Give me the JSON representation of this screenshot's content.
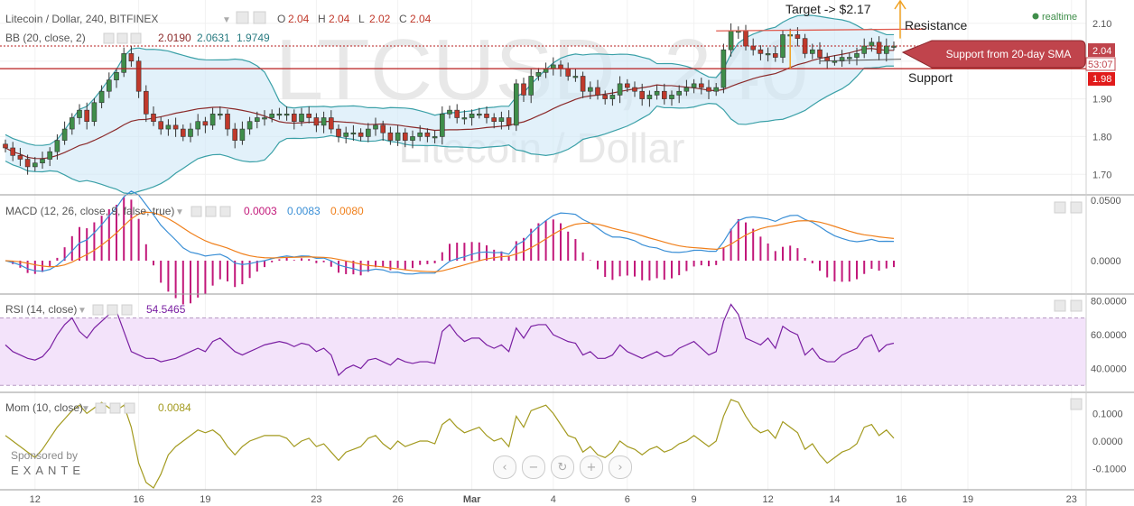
{
  "header": {
    "symbol_title": "Litecoin / Dollar, 240, BITFINEX",
    "ohlc": [
      {
        "k": "O",
        "v": "2.04"
      },
      {
        "k": "H",
        "v": "2.04"
      },
      {
        "k": "L",
        "v": "2.02"
      },
      {
        "k": "C",
        "v": "2.04"
      }
    ],
    "realtime": "realtime"
  },
  "watermark": {
    "big": "LTCUSD, 240",
    "sub": "Litecoin / Dollar"
  },
  "indicators": {
    "bb": {
      "label": "BB (20, close, 2)",
      "v1": "2.0190",
      "v2": "2.0631",
      "v3": "1.9749"
    },
    "macd": {
      "label": "MACD (12, 26, close, 9, false, true)",
      "v1": "0.0003",
      "v2": "0.0083",
      "v3": "0.0080"
    },
    "rsi": {
      "label": "RSI (14, close)",
      "v1": "54.5465"
    },
    "mom": {
      "label": "Mom (10, close)",
      "v1": "0.0084"
    }
  },
  "annotations": {
    "target": "Target -> $2.17",
    "resistance": "Resistance",
    "support": "Support",
    "callout": "Support from 20-day SMA"
  },
  "price_tags": {
    "last": "2.04",
    "timer": "53:07",
    "support": "1.98"
  },
  "sponsor": {
    "line1": "Sponsored by",
    "line2": "EXANTE"
  },
  "colors": {
    "up": "#3f8e4a",
    "down": "#c0392b",
    "bb_band": "#3aa0a7",
    "bb_basis": "#8b2a2a",
    "bb_fill": "#cfe8f6",
    "macd_line": "#3a8fd6",
    "signal_line": "#f07f1a",
    "hist": "#c2187a",
    "rsi": "#7a1fa2",
    "rsi_fill": "#f3e3fa",
    "mom": "#a39a1f",
    "level": "#b71c1c",
    "target_arrow": "#f0a020"
  },
  "chart_data": [
    {
      "type": "candlestick",
      "title": "Litecoin / Dollar, 240, BITFINEX",
      "y_ticks": [
        "1.70",
        "1.80",
        "1.90",
        "2.00",
        "2.10"
      ],
      "ylim": [
        1.66,
        2.15
      ],
      "x_ticks": [
        "12",
        "16",
        "19",
        "23",
        "26",
        "Mar",
        "4",
        "6",
        "9",
        "12",
        "14",
        "16",
        "19",
        "23"
      ],
      "close": [
        1.77,
        1.75,
        1.74,
        1.72,
        1.73,
        1.74,
        1.76,
        1.79,
        1.82,
        1.85,
        1.87,
        1.84,
        1.89,
        1.92,
        1.95,
        1.97,
        2.02,
        2.0,
        1.92,
        1.86,
        1.84,
        1.82,
        1.83,
        1.82,
        1.8,
        1.82,
        1.84,
        1.83,
        1.86,
        1.86,
        1.82,
        1.79,
        1.82,
        1.84,
        1.85,
        1.85,
        1.86,
        1.86,
        1.86,
        1.84,
        1.86,
        1.85,
        1.83,
        1.85,
        1.82,
        1.8,
        1.81,
        1.81,
        1.8,
        1.82,
        1.83,
        1.81,
        1.79,
        1.81,
        1.79,
        1.8,
        1.81,
        1.8,
        1.8,
        1.86,
        1.87,
        1.85,
        1.85,
        1.86,
        1.86,
        1.85,
        1.84,
        1.85,
        1.83,
        1.94,
        1.91,
        1.96,
        1.97,
        1.98,
        1.99,
        1.98,
        1.96,
        1.96,
        1.92,
        1.93,
        1.91,
        1.9,
        1.91,
        1.94,
        1.93,
        1.92,
        1.9,
        1.91,
        1.92,
        1.9,
        1.91,
        1.92,
        1.93,
        1.94,
        1.93,
        1.92,
        1.93,
        2.03,
        2.08,
        2.08,
        2.04,
        2.03,
        2.02,
        2.02,
        2.01,
        2.07,
        2.07,
        2.06,
        2.02,
        2.03,
        2.01,
        2.0,
        2.0,
        2.01,
        2.01,
        2.02,
        2.04,
        2.05,
        2.02,
        2.04,
        2.04
      ]
    },
    {
      "type": "line",
      "title": "MACD (12, 26, close, 9, false, true)",
      "y_ticks": [
        "0.0000",
        "0.0500"
      ],
      "series": [
        {
          "name": "MACD",
          "key": "macd"
        },
        {
          "name": "Signal",
          "key": "signal"
        },
        {
          "name": "Histogram",
          "key": "hist"
        }
      ]
    },
    {
      "type": "line",
      "title": "RSI (14, close)",
      "y_ticks": [
        "40.0000",
        "60.0000",
        "80.0000"
      ],
      "ylim": [
        28,
        82
      ],
      "values": [
        54,
        50,
        48,
        46,
        45,
        47,
        52,
        60,
        66,
        70,
        62,
        58,
        64,
        68,
        72,
        74,
        62,
        50,
        48,
        46,
        46,
        44,
        45,
        46,
        48,
        50,
        52,
        50,
        56,
        58,
        54,
        50,
        48,
        50,
        52,
        54,
        55,
        56,
        55,
        53,
        55,
        54,
        50,
        52,
        48,
        36,
        40,
        42,
        40,
        45,
        46,
        44,
        42,
        46,
        44,
        43,
        44,
        44,
        43,
        62,
        66,
        60,
        56,
        58,
        58,
        54,
        52,
        54,
        50,
        64,
        58,
        65,
        66,
        66,
        60,
        58,
        56,
        55,
        48,
        50,
        46,
        46,
        48,
        54,
        50,
        48,
        46,
        48,
        50,
        47,
        48,
        52,
        54,
        56,
        52,
        48,
        50,
        68,
        78,
        72,
        58,
        56,
        54,
        58,
        52,
        65,
        62,
        60,
        48,
        52,
        46,
        44,
        44,
        48,
        50,
        52,
        58,
        60,
        50,
        54,
        55
      ]
    },
    {
      "type": "line",
      "title": "Mom (10, close)",
      "y_ticks": [
        "-0.1000",
        "0.0000",
        "0.1000"
      ],
      "ylim": [
        -0.17,
        0.16
      ],
      "values": [
        0.02,
        0.0,
        -0.02,
        -0.04,
        -0.06,
        -0.03,
        0.01,
        0.05,
        0.08,
        0.11,
        0.13,
        0.1,
        0.12,
        0.14,
        0.12,
        0.11,
        0.13,
        0.05,
        -0.08,
        -0.15,
        -0.17,
        -0.12,
        -0.05,
        -0.02,
        0.0,
        0.02,
        0.04,
        0.03,
        0.04,
        0.02,
        -0.02,
        -0.05,
        -0.02,
        0.0,
        0.01,
        0.02,
        0.02,
        0.02,
        0.01,
        -0.02,
        0.0,
        0.01,
        -0.02,
        -0.01,
        -0.04,
        -0.07,
        -0.04,
        -0.03,
        -0.02,
        0.01,
        0.02,
        -0.01,
        -0.03,
        0.0,
        -0.02,
        -0.01,
        0.0,
        0.0,
        -0.01,
        0.06,
        0.08,
        0.05,
        0.03,
        0.04,
        0.05,
        0.02,
        0.0,
        0.01,
        -0.02,
        0.09,
        0.05,
        0.11,
        0.12,
        0.13,
        0.1,
        0.06,
        0.02,
        0.01,
        -0.04,
        -0.02,
        -0.05,
        -0.06,
        -0.04,
        0.0,
        -0.02,
        -0.03,
        -0.05,
        -0.03,
        -0.02,
        -0.04,
        -0.03,
        -0.01,
        0.0,
        0.02,
        0.0,
        -0.02,
        0.0,
        0.09,
        0.15,
        0.14,
        0.09,
        0.05,
        0.03,
        0.04,
        0.01,
        0.07,
        0.05,
        0.03,
        -0.03,
        -0.01,
        -0.05,
        -0.08,
        -0.06,
        -0.04,
        -0.03,
        -0.01,
        0.05,
        0.06,
        0.02,
        0.04,
        0.01
      ]
    }
  ]
}
